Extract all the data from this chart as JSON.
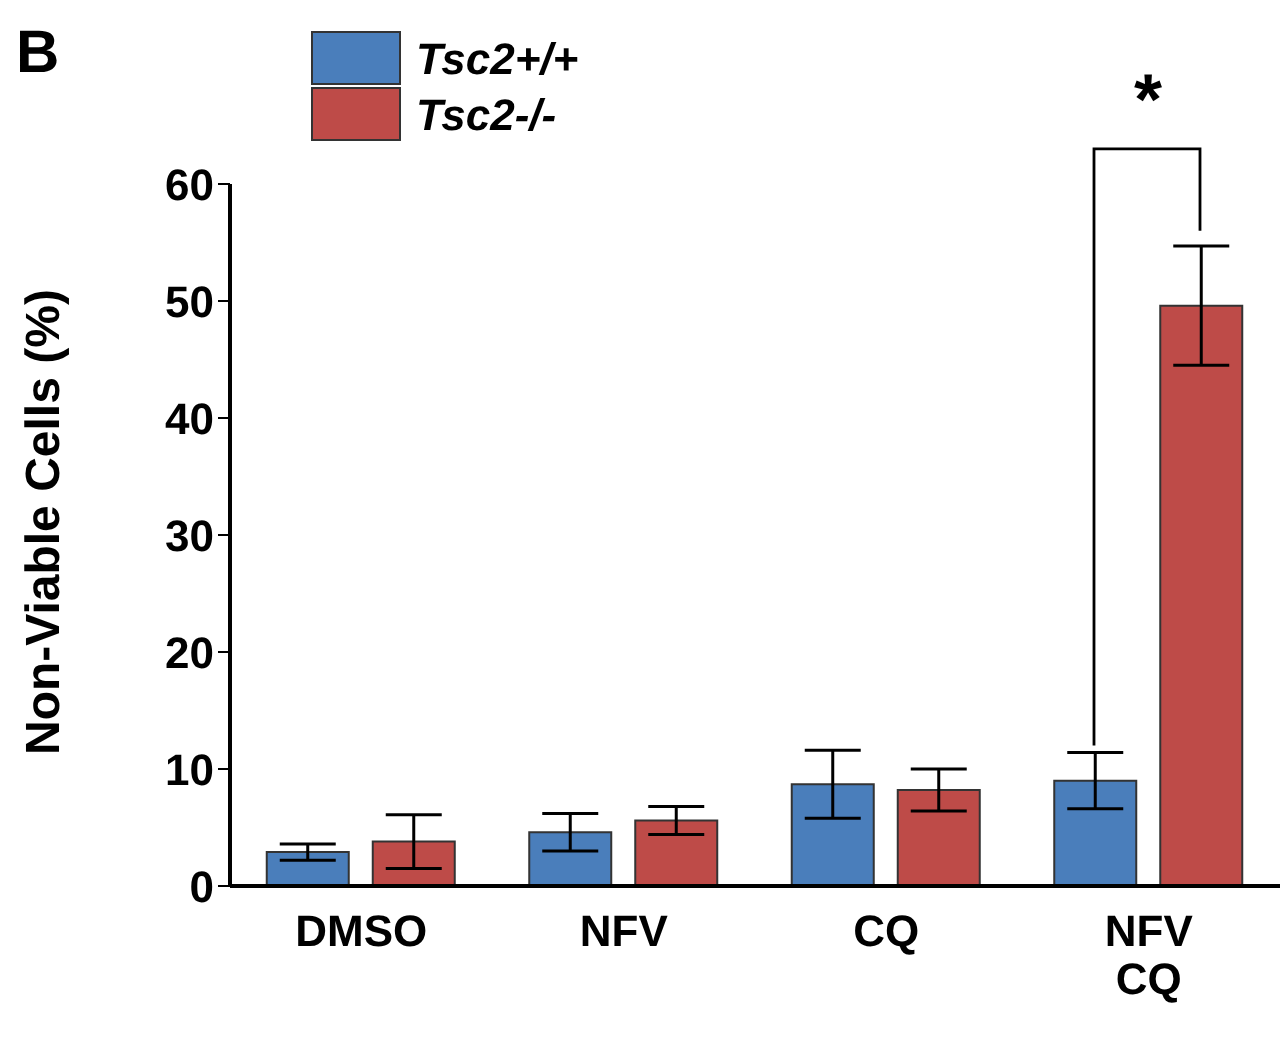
{
  "chart_data": {
    "type": "bar",
    "ylabel": "Non-Viable Cells (%)",
    "categories": [
      "DMSO",
      "NFV",
      "CQ",
      "NFV\nCQ"
    ],
    "series": [
      {
        "name": "Tsc2+/+",
        "color": "#4a7ebb",
        "values": [
          2.9,
          4.6,
          8.7,
          9.0
        ],
        "errors": [
          0.7,
          1.6,
          2.9,
          2.4
        ]
      },
      {
        "name": "Tsc2-/-",
        "color": "#be4b48",
        "values": [
          3.8,
          5.6,
          8.2,
          49.6
        ],
        "errors": [
          2.3,
          1.2,
          1.8,
          5.1
        ]
      }
    ],
    "ylim": [
      0,
      60
    ],
    "yticks": [
      0,
      10,
      20,
      30,
      40,
      50,
      60
    ],
    "grid": false,
    "legend": "top left",
    "annotations": [
      "B",
      "*"
    ]
  }
}
